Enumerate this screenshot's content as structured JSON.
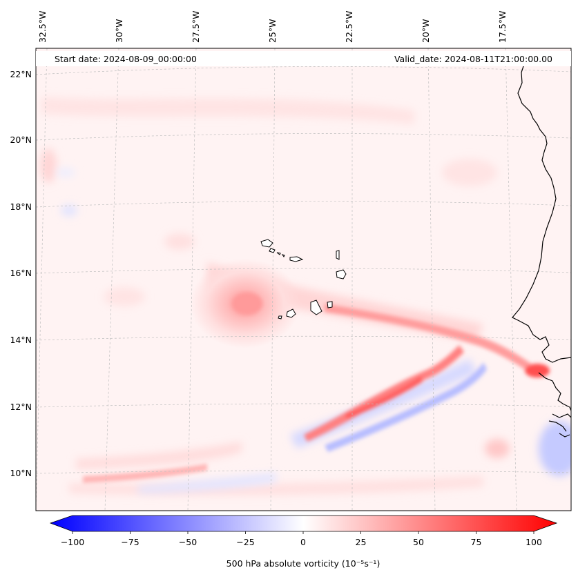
{
  "header": {
    "start_date": "Start date: 2024-08-09_00:00:00",
    "valid_date": "Valid_date: 2024-08-11T21:00:00.00"
  },
  "map": {
    "lon_labels": [
      "32.5°W",
      "30°W",
      "27.5°W",
      "25°W",
      "22.5°W",
      "20°W",
      "17.5°W"
    ],
    "lat_labels": [
      "22°N",
      "20°N",
      "18°N",
      "16°N",
      "14°N",
      "12°N",
      "10°N"
    ]
  },
  "colorbar": {
    "label": "500 hPa absolute vorticity (10⁻⁵s⁻¹)",
    "ticks": [
      "−100",
      "−75",
      "−50",
      "−25",
      "0",
      "25",
      "50",
      "75",
      "100"
    ],
    "min": -100,
    "max": 100,
    "negative_color": "#0000ff",
    "positive_color": "#ff0000"
  }
}
